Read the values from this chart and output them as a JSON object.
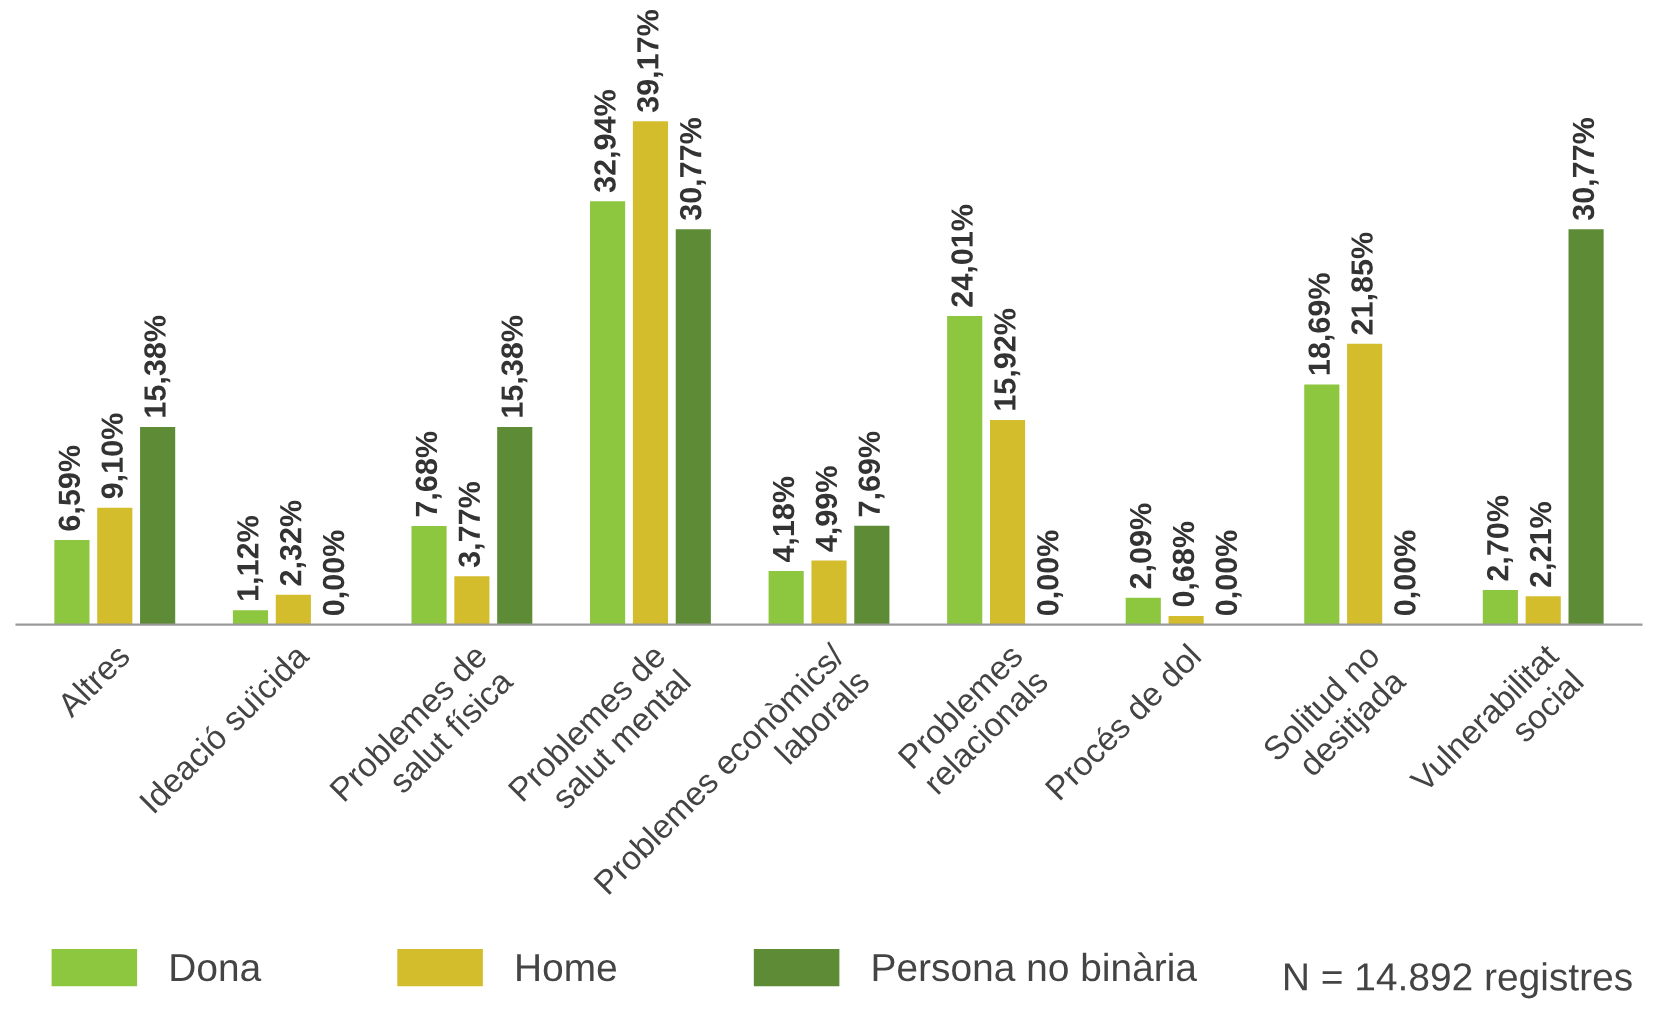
{
  "chart_data": {
    "type": "bar",
    "categories": [
      "Altres",
      "Ideació suïcida",
      "Problemes de\nsalut física",
      "Problemes de\nsalut mental",
      "Problemes econòmics/\nlaborals",
      "Problemes\nrelacionals",
      "Procés de dol",
      "Solitud no\ndesitjada",
      "Vulnerabilitat\nsocial"
    ],
    "series": [
      {
        "name": "Dona",
        "color": "#8dc63f",
        "values": [
          6.59,
          1.12,
          7.68,
          32.94,
          4.18,
          24.01,
          2.09,
          18.69,
          2.7
        ],
        "value_labels": [
          "6,59%",
          "1,12%",
          "7,68%",
          "32,94%",
          "4,18%",
          "24,01%",
          "2,09%",
          "18,69%",
          "2,70%"
        ]
      },
      {
        "name": "Home",
        "color": "#d4bd2c",
        "values": [
          9.1,
          2.32,
          3.77,
          39.17,
          4.99,
          15.92,
          0.68,
          21.85,
          2.21
        ],
        "value_labels": [
          "9,10%",
          "2,32%",
          "3,77%",
          "39,17%",
          "4,99%",
          "15,92%",
          "0,68%",
          "21,85%",
          "2,21%"
        ]
      },
      {
        "name": "Persona no binària",
        "color": "#5e8b36",
        "values": [
          15.38,
          0.0,
          15.38,
          30.77,
          7.69,
          0.0,
          0.0,
          0.0,
          30.77
        ],
        "value_labels": [
          "15,38%",
          "0,00%",
          "15,38%",
          "30,77%",
          "7,69%",
          "0,00%",
          "0,00%",
          "0,00%",
          "30,77%"
        ]
      }
    ],
    "legend": "bottom",
    "grid": false,
    "annotations": [
      "N = 14.892 registres"
    ]
  }
}
